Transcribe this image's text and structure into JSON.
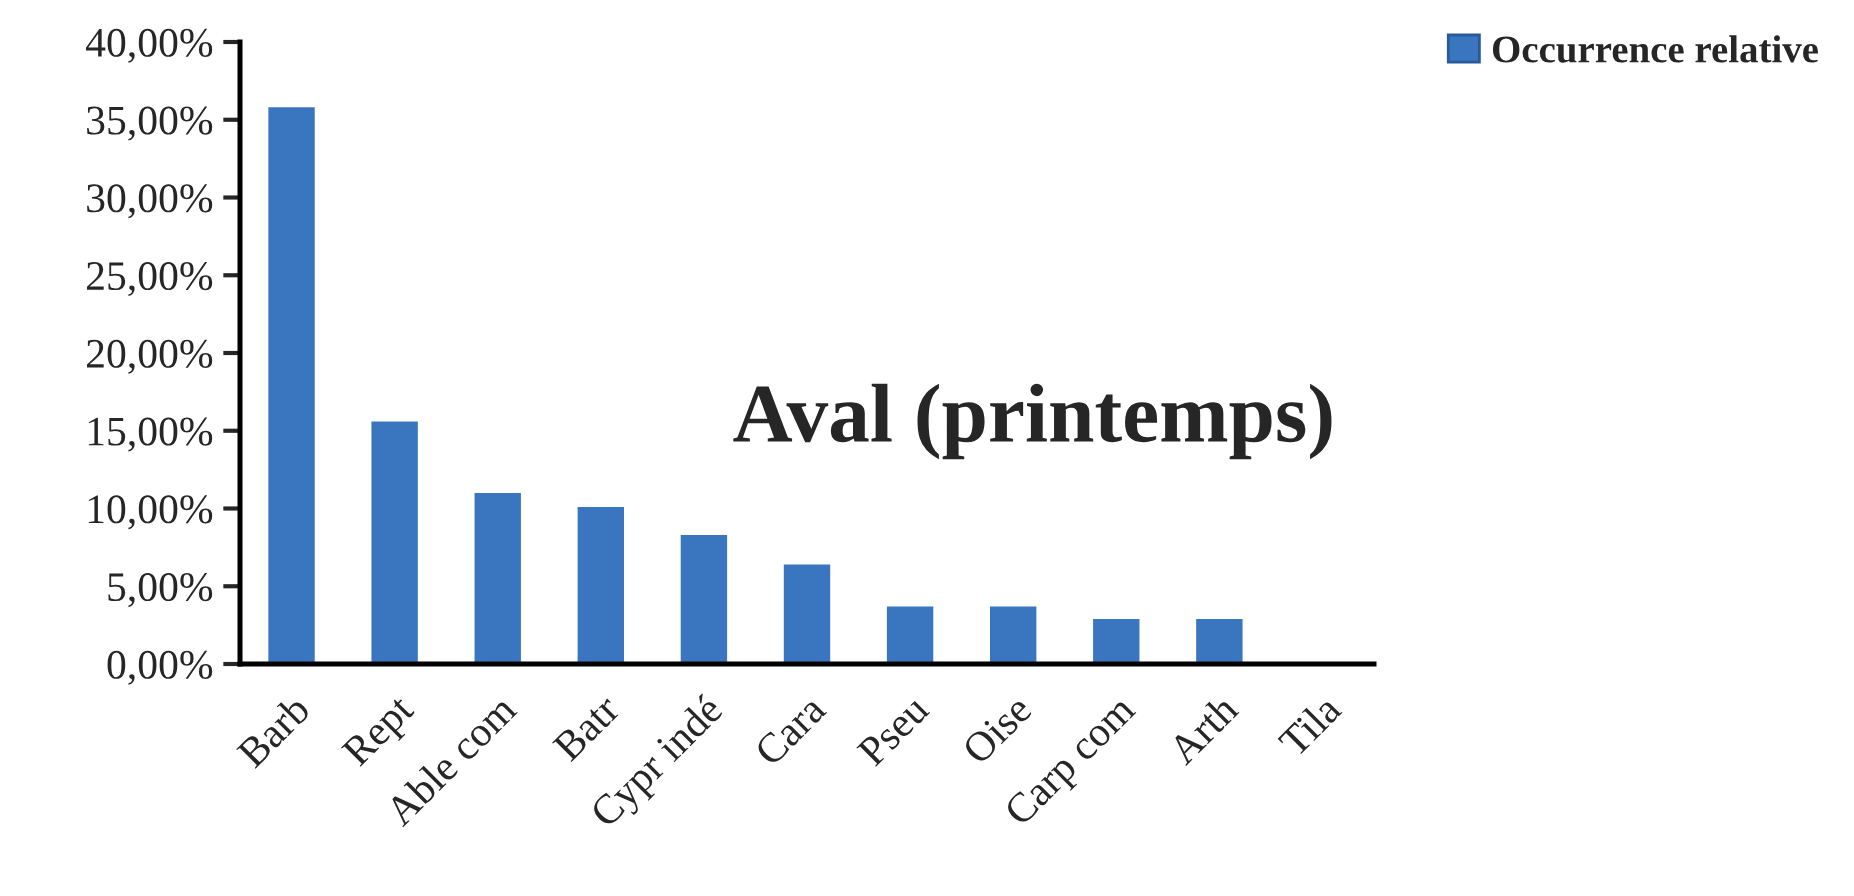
{
  "chart_data": {
    "type": "bar",
    "title": "Aval (printemps)",
    "categories": [
      "Barb",
      "Rept",
      "Able com",
      "Batr",
      "Cypr indé",
      "Cara",
      "Pseu",
      "Oise",
      "Carp com",
      "Arth",
      "Tila"
    ],
    "series": [
      {
        "name": "Occurrence relative",
        "color": "#3a76c0",
        "values": [
          35.8,
          15.6,
          11.0,
          10.1,
          8.3,
          6.4,
          3.7,
          3.7,
          2.9,
          2.9,
          0
        ]
      }
    ],
    "ylim": [
      0,
      40
    ],
    "yticks": [
      {
        "value": 0,
        "label": "0,00%"
      },
      {
        "value": 5,
        "label": "5,00%"
      },
      {
        "value": 10,
        "label": "10,00%"
      },
      {
        "value": 15,
        "label": "15,00%"
      },
      {
        "value": 20,
        "label": "20,00%"
      },
      {
        "value": 25,
        "label": "25,00%"
      },
      {
        "value": 30,
        "label": "30,00%"
      },
      {
        "value": 35,
        "label": "35,00%"
      },
      {
        "value": 40,
        "label": "40,00%"
      }
    ],
    "grid": false,
    "legend": "top right"
  }
}
